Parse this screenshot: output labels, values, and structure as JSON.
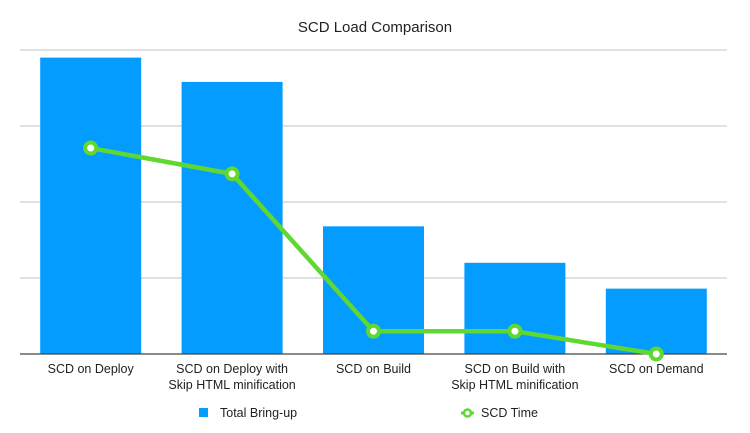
{
  "chart_data": {
    "type": "bar",
    "title": "SCD Load Comparison",
    "xlabel": "",
    "ylabel": "",
    "ylim": [
      0,
      4
    ],
    "y_ticks_labeled": false,
    "grid": true,
    "gridline_values": [
      1,
      2,
      3,
      4
    ],
    "categories": [
      [
        "SCD on Deploy"
      ],
      [
        "SCD on Deploy with",
        "Skip HTML minification"
      ],
      [
        "SCD on Build"
      ],
      [
        "SCD on Build with",
        "Skip HTML minification"
      ],
      [
        "SCD on Demand"
      ]
    ],
    "series": [
      {
        "name": "Total Bring-up",
        "kind": "bar",
        "color": "#049DFF",
        "values": [
          3.9,
          3.58,
          1.68,
          1.2,
          0.86
        ]
      },
      {
        "name": "SCD Time",
        "kind": "line",
        "color": "#5FD831",
        "values": [
          2.71,
          2.37,
          0.3,
          0.3,
          0
        ]
      }
    ],
    "legend": {
      "placement": "bottom",
      "items": [
        "Total Bring-up",
        "SCD Time"
      ]
    }
  }
}
